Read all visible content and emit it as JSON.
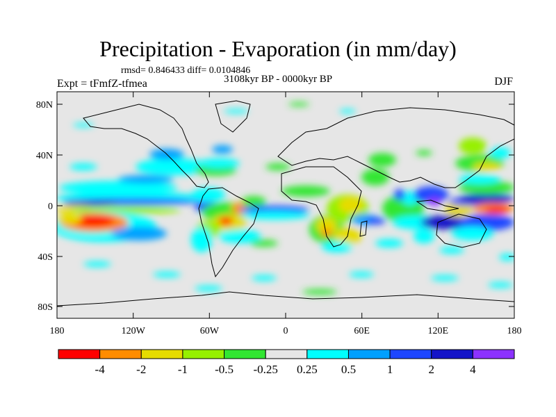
{
  "title": "Precipitation - Evaporation (in mm/day)",
  "stats_line": "rmsd= 0.846433 diff= 0.0104846",
  "period": "3108kyr BP - 0000kyr BP",
  "experiment": "Expt = tFmfZ-tfmea",
  "season": "DJF",
  "lat_ticks": [
    "80N",
    "40N",
    "0",
    "40S",
    "80S"
  ],
  "lon_ticks": [
    "180",
    "120W",
    "60W",
    "0",
    "60E",
    "120E",
    "180"
  ],
  "colorbar": {
    "colors": [
      "#ff0000",
      "#ff8c00",
      "#e6dc00",
      "#96f000",
      "#32e632",
      "#e6e6e6",
      "#00ffff",
      "#00a0ff",
      "#1e46ff",
      "#1414c8",
      "#8c32ff"
    ],
    "labels": [
      "-4",
      "-2",
      "-1",
      "-0.5",
      "-0.25",
      "0.25",
      "0.5",
      "1",
      "2",
      "4"
    ]
  }
}
